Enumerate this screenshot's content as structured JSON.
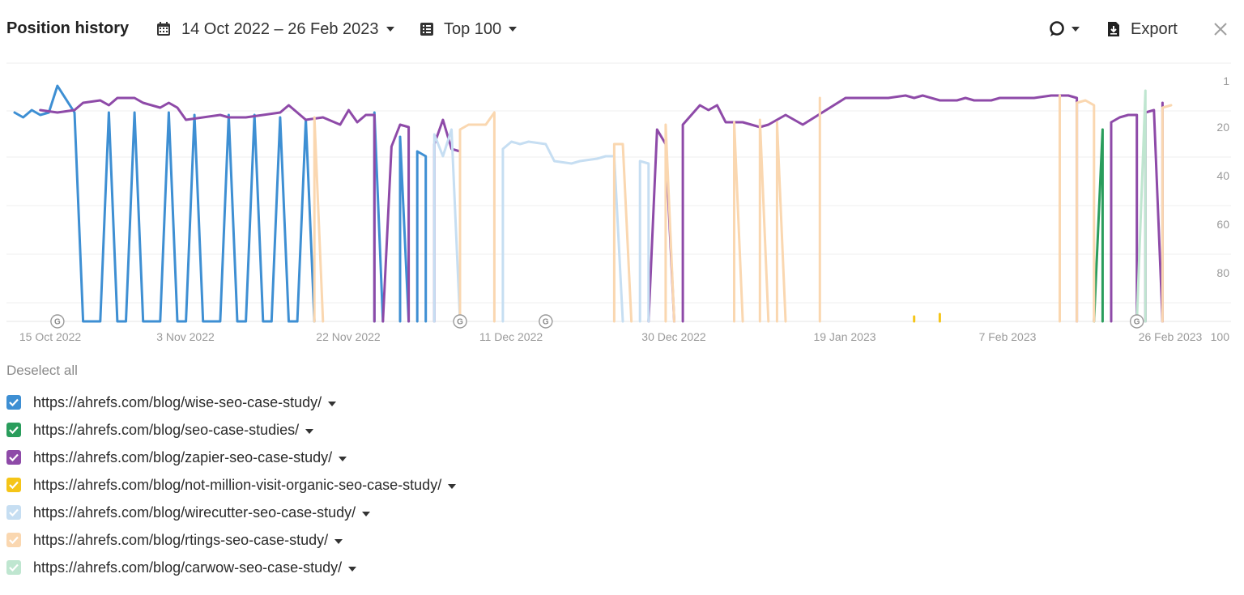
{
  "header": {
    "title": "Position history",
    "date_range": "14 Oct 2022 – 26 Feb 2023",
    "top_filter": "Top 100",
    "export_label": "Export",
    "icons": [
      "calendar-icon",
      "list-icon",
      "comment-icon",
      "download-icon",
      "close-icon"
    ]
  },
  "deselect_label": "Deselect all",
  "legend": [
    {
      "label": "https://ahrefs.com/blog/wise-seo-case-study/",
      "color": "#3e8fd3",
      "checked": true
    },
    {
      "label": "https://ahrefs.com/blog/seo-case-studies/",
      "color": "#2a9d5c",
      "checked": true
    },
    {
      "label": "https://ahrefs.com/blog/zapier-seo-case-study/",
      "color": "#8e4aa8",
      "checked": true
    },
    {
      "label": "https://ahrefs.com/blog/not-million-visit-organic-seo-case-study/",
      "color": "#f5c518",
      "checked": true
    },
    {
      "label": "https://ahrefs.com/blog/wirecutter-seo-case-study/",
      "color": "#c6def2",
      "checked": true
    },
    {
      "label": "https://ahrefs.com/blog/rtings-seo-case-study/",
      "color": "#fad7b0",
      "checked": true
    },
    {
      "label": "https://ahrefs.com/blog/carwow-seo-case-study/",
      "color": "#bfe6d0",
      "checked": true
    }
  ],
  "chart_data": {
    "type": "line",
    "title": "",
    "xlabel": "",
    "ylabel": "",
    "x_range": [
      "2022-10-14",
      "2023-02-26"
    ],
    "x_ticks": [
      "15 Oct 2022",
      "3 Nov 2022",
      "22 Nov 2022",
      "11 Dec 2022",
      "30 Dec 2022",
      "19 Jan 2023",
      "7 Feb 2023",
      "26 Feb 2023"
    ],
    "y_ticks": [
      "1",
      "20",
      "40",
      "60",
      "80",
      "100"
    ],
    "ylim": [
      1,
      100
    ],
    "y_inverted": true,
    "grid": true,
    "google_update_markers": [
      "2022-10-19",
      "2022-12-05",
      "2022-12-15",
      "2023-02-22"
    ],
    "series": [
      {
        "name": "https://ahrefs.com/blog/wise-seo-case-study/",
        "color": "#3e8fd3",
        "segments": [
          [
            [
              "2022-10-14",
              14
            ],
            [
              "2022-10-15",
              16
            ],
            [
              "2022-10-16",
              13
            ],
            [
              "2022-10-17",
              15
            ],
            [
              "2022-10-18",
              14
            ],
            [
              "2022-10-19",
              3
            ],
            [
              "2022-10-21",
              14
            ],
            [
              "2022-10-22",
              100
            ],
            [
              "2022-10-24",
              100
            ],
            [
              "2022-10-25",
              14
            ],
            [
              "2022-10-26",
              100
            ],
            [
              "2022-10-27",
              100
            ],
            [
              "2022-10-28",
              14
            ],
            [
              "2022-10-29",
              100
            ],
            [
              "2022-10-31",
              100
            ],
            [
              "2022-11-01",
              14
            ],
            [
              "2022-11-02",
              100
            ],
            [
              "2022-11-03",
              100
            ],
            [
              "2022-11-04",
              15
            ],
            [
              "2022-11-05",
              100
            ],
            [
              "2022-11-07",
              100
            ],
            [
              "2022-11-08",
              15
            ],
            [
              "2022-11-09",
              100
            ],
            [
              "2022-11-10",
              100
            ],
            [
              "2022-11-11",
              15
            ],
            [
              "2022-11-12",
              100
            ],
            [
              "2022-11-13",
              100
            ],
            [
              "2022-11-14",
              16
            ],
            [
              "2022-11-15",
              100
            ],
            [
              "2022-11-16",
              100
            ],
            [
              "2022-11-17",
              17
            ],
            [
              "2022-11-18",
              100
            ]
          ],
          [
            [
              "2022-11-25",
              100
            ],
            [
              "2022-11-25",
              14
            ],
            [
              "2022-11-26",
              100
            ]
          ],
          [
            [
              "2022-11-28",
              100
            ],
            [
              "2022-11-28",
              24
            ],
            [
              "2022-11-29",
              100
            ]
          ],
          [
            [
              "2022-11-30",
              100
            ],
            [
              "2022-11-30",
              30
            ],
            [
              "2022-12-01",
              32
            ],
            [
              "2022-12-01",
              100
            ]
          ]
        ]
      },
      {
        "name": "https://ahrefs.com/blog/seo-case-studies/",
        "color": "#2a9d5c",
        "segments": [
          [
            [
              "2023-02-17",
              100
            ],
            [
              "2023-02-18",
              21
            ],
            [
              "2023-02-18",
              100
            ]
          ]
        ]
      },
      {
        "name": "https://ahrefs.com/blog/zapier-seo-case-study/",
        "color": "#8e4aa8",
        "segments": [
          [
            [
              "2022-10-17",
              13
            ],
            [
              "2022-10-19",
              14
            ],
            [
              "2022-10-21",
              13
            ],
            [
              "2022-10-22",
              10
            ],
            [
              "2022-10-24",
              9
            ],
            [
              "2022-10-25",
              11
            ],
            [
              "2022-10-26",
              8
            ],
            [
              "2022-10-28",
              8
            ],
            [
              "2022-10-29",
              10
            ],
            [
              "2022-10-31",
              12
            ],
            [
              "2022-11-01",
              10
            ],
            [
              "2022-11-02",
              12
            ],
            [
              "2022-11-03",
              17
            ],
            [
              "2022-11-07",
              15
            ],
            [
              "2022-11-08",
              16
            ],
            [
              "2022-11-10",
              16
            ],
            [
              "2022-11-12",
              15
            ],
            [
              "2022-11-14",
              14
            ],
            [
              "2022-11-15",
              11
            ],
            [
              "2022-11-17",
              17
            ],
            [
              "2022-11-19",
              16
            ],
            [
              "2022-11-21",
              19
            ],
            [
              "2022-11-22",
              13
            ],
            [
              "2022-11-23",
              18
            ],
            [
              "2022-11-24",
              15
            ],
            [
              "2022-11-25",
              15
            ],
            [
              "2022-11-25",
              100
            ]
          ],
          [
            [
              "2022-11-26",
              100
            ],
            [
              "2022-11-27",
              28
            ],
            [
              "2022-11-28",
              19
            ],
            [
              "2022-11-29",
              20
            ],
            [
              "2022-11-29",
              100
            ]
          ],
          [
            [
              "2022-12-02",
              100
            ],
            [
              "2022-12-02",
              27
            ],
            [
              "2022-12-03",
              17
            ],
            [
              "2022-12-04",
              29
            ],
            [
              "2022-12-05",
              30
            ],
            [
              "2022-12-05",
              100
            ]
          ],
          [
            [
              "2022-12-27",
              100
            ],
            [
              "2022-12-28",
              21
            ],
            [
              "2022-12-29",
              27
            ],
            [
              "2022-12-30",
              100
            ]
          ],
          [
            [
              "2022-12-31",
              100
            ],
            [
              "2022-12-31",
              19
            ],
            [
              "2023-01-02",
              11
            ],
            [
              "2023-01-03",
              13
            ],
            [
              "2023-01-04",
              11
            ],
            [
              "2023-01-05",
              18
            ],
            [
              "2023-01-07",
              18
            ],
            [
              "2023-01-09",
              20
            ],
            [
              "2023-01-10",
              19
            ],
            [
              "2023-01-12",
              15
            ],
            [
              "2023-01-14",
              19
            ],
            [
              "2023-01-19",
              8
            ],
            [
              "2023-01-24",
              8
            ],
            [
              "2023-01-26",
              7
            ],
            [
              "2023-01-27",
              8
            ],
            [
              "2023-01-28",
              7
            ],
            [
              "2023-01-30",
              9
            ],
            [
              "2023-02-01",
              9
            ],
            [
              "2023-02-02",
              8
            ],
            [
              "2023-02-03",
              9
            ],
            [
              "2023-02-05",
              9
            ],
            [
              "2023-02-06",
              8
            ],
            [
              "2023-02-08",
              8
            ],
            [
              "2023-02-10",
              8
            ],
            [
              "2023-02-12",
              7
            ],
            [
              "2023-02-14",
              7
            ],
            [
              "2023-02-15",
              8
            ],
            [
              "2023-02-15",
              100
            ]
          ],
          [
            [
              "2023-02-19",
              100
            ],
            [
              "2023-02-19",
              18
            ],
            [
              "2023-02-20",
              16
            ],
            [
              "2023-02-21",
              15
            ],
            [
              "2023-02-22",
              15
            ],
            [
              "2023-02-22",
              100
            ]
          ],
          [
            [
              "2023-02-23",
              100
            ],
            [
              "2023-02-23",
              14
            ],
            [
              "2023-02-24",
              13
            ],
            [
              "2023-02-25",
              100
            ]
          ],
          [
            [
              "2023-02-25",
              100
            ],
            [
              "2023-02-25",
              10
            ]
          ]
        ]
      },
      {
        "name": "https://ahrefs.com/blog/not-million-visit-organic-seo-case-study/",
        "color": "#f5c518",
        "segments": [
          [
            [
              "2023-01-27",
              100
            ],
            [
              "2023-01-27",
              98
            ]
          ],
          [
            [
              "2023-01-30",
              100
            ],
            [
              "2023-01-30",
              97
            ]
          ]
        ]
      },
      {
        "name": "https://ahrefs.com/blog/wirecutter-seo-case-study/",
        "color": "#c6def2",
        "segments": [
          [
            [
              "2022-12-02",
              100
            ],
            [
              "2022-12-02",
              23
            ],
            [
              "2022-12-03",
              32
            ],
            [
              "2022-12-04",
              21
            ],
            [
              "2022-12-05",
              100
            ]
          ],
          [
            [
              "2022-12-10",
              100
            ],
            [
              "2022-12-10",
              29
            ],
            [
              "2022-12-11",
              26
            ],
            [
              "2022-12-12",
              27
            ],
            [
              "2022-12-13",
              26
            ],
            [
              "2022-12-15",
              27
            ],
            [
              "2022-12-16",
              34
            ],
            [
              "2022-12-18",
              35
            ],
            [
              "2022-12-19",
              34
            ],
            [
              "2022-12-21",
              33
            ],
            [
              "2022-12-22",
              32
            ],
            [
              "2022-12-23",
              32
            ],
            [
              "2022-12-24",
              100
            ]
          ],
          [
            [
              "2022-12-26",
              100
            ],
            [
              "2022-12-26",
              34
            ],
            [
              "2022-12-27",
              35
            ],
            [
              "2022-12-27",
              100
            ]
          ]
        ]
      },
      {
        "name": "https://ahrefs.com/blog/rtings-seo-case-study/",
        "color": "#fad7b0",
        "segments": [
          [
            [
              "2022-11-18",
              100
            ],
            [
              "2022-11-18",
              16
            ],
            [
              "2022-11-19",
              100
            ]
          ],
          [
            [
              "2022-12-05",
              100
            ],
            [
              "2022-12-05",
              21
            ],
            [
              "2022-12-06",
              19
            ],
            [
              "2022-12-08",
              19
            ],
            [
              "2022-12-09",
              14
            ],
            [
              "2022-12-09",
              100
            ]
          ],
          [
            [
              "2022-12-23",
              100
            ],
            [
              "2022-12-23",
              27
            ],
            [
              "2022-12-24",
              27
            ],
            [
              "2022-12-25",
              100
            ]
          ],
          [
            [
              "2022-12-29",
              100
            ],
            [
              "2022-12-29",
              19
            ],
            [
              "2022-12-30",
              100
            ]
          ],
          [
            [
              "2023-01-06",
              100
            ],
            [
              "2023-01-06",
              18
            ],
            [
              "2023-01-07",
              100
            ]
          ],
          [
            [
              "2023-01-09",
              100
            ],
            [
              "2023-01-09",
              17
            ],
            [
              "2023-01-10",
              100
            ]
          ],
          [
            [
              "2023-01-11",
              100
            ],
            [
              "2023-01-11",
              18
            ],
            [
              "2023-01-12",
              100
            ]
          ],
          [
            [
              "2023-01-16",
              100
            ],
            [
              "2023-01-16",
              8
            ],
            [
              "2023-01-16",
              100
            ]
          ],
          [
            [
              "2023-02-13",
              100
            ],
            [
              "2023-02-13",
              7
            ],
            [
              "2023-02-13",
              100
            ]
          ],
          [
            [
              "2023-02-15",
              100
            ],
            [
              "2023-02-15",
              10
            ],
            [
              "2023-02-16",
              9
            ],
            [
              "2023-02-17",
              11
            ],
            [
              "2023-02-17",
              12
            ],
            [
              "2023-02-17",
              100
            ]
          ],
          [
            [
              "2023-02-25",
              100
            ],
            [
              "2023-02-25",
              12
            ],
            [
              "2023-02-26",
              11
            ]
          ]
        ]
      },
      {
        "name": "https://ahrefs.com/blog/carwow-seo-case-study/",
        "color": "#bfe6d0",
        "segments": [
          [
            [
              "2023-02-22",
              100
            ],
            [
              "2023-02-23",
              5
            ],
            [
              "2023-02-23",
              100
            ]
          ]
        ]
      }
    ]
  }
}
